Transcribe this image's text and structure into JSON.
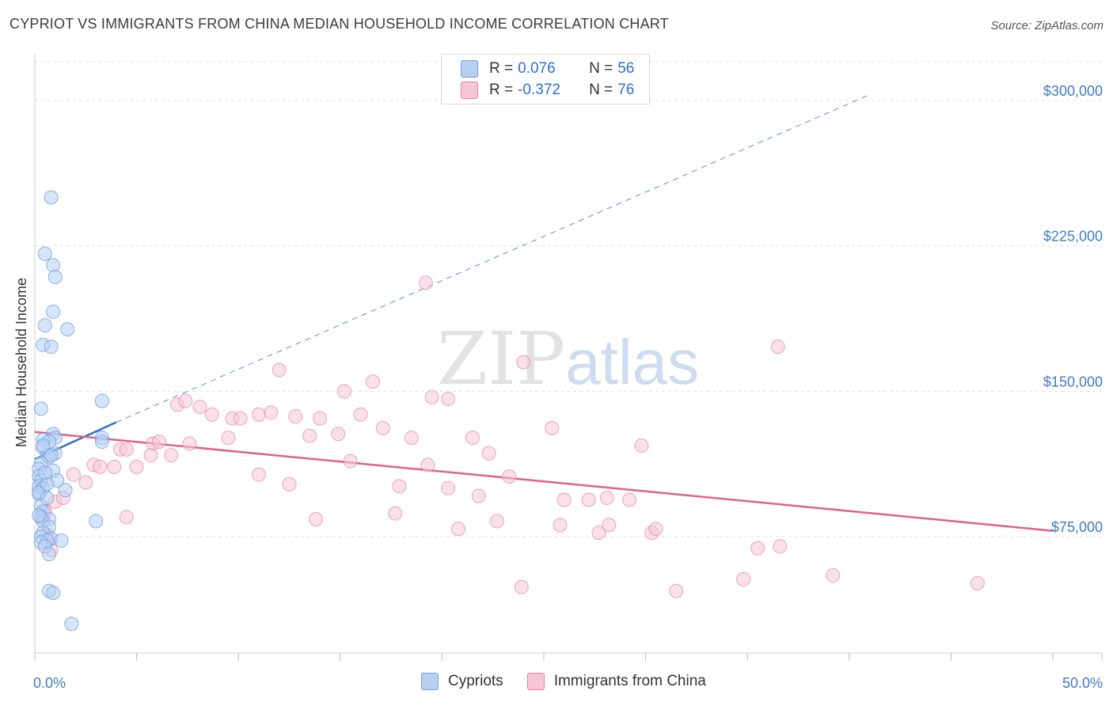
{
  "title": "CYPRIOT VS IMMIGRANTS FROM CHINA MEDIAN HOUSEHOLD INCOME CORRELATION CHART",
  "source": "Source: ZipAtlas.com",
  "watermark": {
    "zip": "ZIP",
    "atlas": "atlas"
  },
  "colors": {
    "cypriot": "#6f9fe0",
    "cypriot_fill": "#b7d0f2",
    "china": "#e87fa5",
    "china_fill": "#f6c6d7",
    "trend_blue": "#2f6fcc",
    "trend_pink": "#e0608e",
    "axis_text": "#3f7cc4",
    "grid": "#e0e0e0"
  },
  "legend": {
    "rows": [
      {
        "r_label": "R =",
        "r_value": "0.076",
        "n_label": "N =",
        "n_value": "56"
      },
      {
        "r_label": "R =",
        "r_value": "-0.372",
        "n_label": "N =",
        "n_value": "76"
      }
    ]
  },
  "bottom_legend": {
    "series1": "Cypriots",
    "series2": "Immigrants from China"
  },
  "chart_data": {
    "type": "scatter",
    "title": "CYPRIOT VS IMMIGRANTS FROM CHINA MEDIAN HOUSEHOLD INCOME CORRELATION CHART",
    "xlabel": "",
    "ylabel": "Median Household Income",
    "xlim": [
      0,
      50
    ],
    "ylim": [
      15000,
      320000
    ],
    "x_tick_labels": [
      "0.0%",
      "50.0%"
    ],
    "y_ticks": [
      75000,
      150000,
      225000,
      300000
    ],
    "y_tick_labels": [
      "$75,000",
      "$150,000",
      "$225,000",
      "$300,000"
    ],
    "grid": true,
    "series": [
      {
        "name": "Cypriots",
        "points": [
          [
            0.8,
            250000
          ],
          [
            0.5,
            221000
          ],
          [
            0.9,
            215000
          ],
          [
            1.0,
            209000
          ],
          [
            0.9,
            191000
          ],
          [
            0.5,
            184000
          ],
          [
            1.6,
            182000
          ],
          [
            0.4,
            174000
          ],
          [
            0.8,
            173000
          ],
          [
            3.3,
            145000
          ],
          [
            0.3,
            141000
          ],
          [
            0.9,
            128000
          ],
          [
            1.0,
            126000
          ],
          [
            3.3,
            126000
          ],
          [
            3.3,
            124000
          ],
          [
            0.4,
            125000
          ],
          [
            0.7,
            124000
          ],
          [
            0.4,
            121000
          ],
          [
            1.0,
            118000
          ],
          [
            0.6,
            117000
          ],
          [
            0.7,
            116000
          ],
          [
            0.3,
            113000
          ],
          [
            0.2,
            110000
          ],
          [
            0.9,
            109000
          ],
          [
            0.2,
            106000
          ],
          [
            0.3,
            104000
          ],
          [
            1.1,
            104000
          ],
          [
            0.2,
            101000
          ],
          [
            0.4,
            100000
          ],
          [
            1.5,
            99000
          ],
          [
            0.2,
            97000
          ],
          [
            0.3,
            91000
          ],
          [
            0.4,
            88000
          ],
          [
            0.3,
            85000
          ],
          [
            0.7,
            84000
          ],
          [
            0.4,
            83000
          ],
          [
            0.7,
            80000
          ],
          [
            0.4,
            77000
          ],
          [
            0.3,
            75000
          ],
          [
            0.8,
            74000
          ],
          [
            0.6,
            73000
          ],
          [
            1.3,
            73000
          ],
          [
            0.3,
            72000
          ],
          [
            0.5,
            70000
          ],
          [
            0.7,
            66000
          ],
          [
            0.7,
            47000
          ],
          [
            0.9,
            46000
          ],
          [
            1.8,
            30000
          ],
          [
            3.0,
            83000
          ],
          [
            0.2,
            98000
          ],
          [
            0.6,
            102000
          ],
          [
            0.8,
            117000
          ],
          [
            0.2,
            86000
          ],
          [
            0.4,
            122000
          ],
          [
            0.5,
            108000
          ],
          [
            0.6,
            95000
          ]
        ]
      },
      {
        "name": "Immigrants from China",
        "points": [
          [
            19.2,
            206000
          ],
          [
            36.5,
            173000
          ],
          [
            12.0,
            161000
          ],
          [
            16.6,
            155000
          ],
          [
            24.0,
            165000
          ],
          [
            15.2,
            150000
          ],
          [
            19.5,
            147000
          ],
          [
            7.0,
            143000
          ],
          [
            8.1,
            142000
          ],
          [
            7.4,
            145000
          ],
          [
            20.3,
            146000
          ],
          [
            8.7,
            138000
          ],
          [
            11.0,
            138000
          ],
          [
            11.6,
            139000
          ],
          [
            9.7,
            136000
          ],
          [
            10.1,
            136000
          ],
          [
            12.8,
            137000
          ],
          [
            14.0,
            136000
          ],
          [
            16.0,
            138000
          ],
          [
            17.1,
            131000
          ],
          [
            25.4,
            131000
          ],
          [
            29.8,
            122000
          ],
          [
            9.5,
            126000
          ],
          [
            13.5,
            127000
          ],
          [
            14.9,
            128000
          ],
          [
            18.5,
            126000
          ],
          [
            21.5,
            126000
          ],
          [
            5.8,
            123000
          ],
          [
            6.1,
            124000
          ],
          [
            7.6,
            123000
          ],
          [
            4.2,
            120000
          ],
          [
            4.5,
            120000
          ],
          [
            5.0,
            111000
          ],
          [
            5.7,
            117000
          ],
          [
            6.7,
            117000
          ],
          [
            2.9,
            112000
          ],
          [
            3.2,
            111000
          ],
          [
            3.9,
            111000
          ],
          [
            1.9,
            107000
          ],
          [
            2.5,
            103000
          ],
          [
            15.5,
            114000
          ],
          [
            19.3,
            112000
          ],
          [
            22.3,
            118000
          ],
          [
            11.0,
            107000
          ],
          [
            12.5,
            102000
          ],
          [
            17.9,
            101000
          ],
          [
            23.3,
            106000
          ],
          [
            20.3,
            100000
          ],
          [
            21.8,
            96000
          ],
          [
            26.0,
            94000
          ],
          [
            27.2,
            94000
          ],
          [
            28.1,
            95000
          ],
          [
            29.2,
            94000
          ],
          [
            4.5,
            85000
          ],
          [
            13.8,
            84000
          ],
          [
            17.7,
            87000
          ],
          [
            20.8,
            79000
          ],
          [
            22.7,
            83000
          ],
          [
            25.8,
            81000
          ],
          [
            27.7,
            77000
          ],
          [
            28.2,
            81000
          ],
          [
            30.3,
            77000
          ],
          [
            30.5,
            79000
          ],
          [
            35.5,
            69000
          ],
          [
            36.6,
            70000
          ],
          [
            23.9,
            49000
          ],
          [
            31.5,
            47000
          ],
          [
            34.8,
            53000
          ],
          [
            39.2,
            55000
          ],
          [
            46.3,
            51000
          ],
          [
            0.4,
            85000
          ],
          [
            0.6,
            76000
          ],
          [
            0.8,
            68000
          ],
          [
            1.0,
            93000
          ],
          [
            1.4,
            95000
          ],
          [
            0.5,
            88000
          ]
        ]
      }
    ],
    "trend_lines": [
      {
        "series": "Cypriots",
        "solid_x": [
          0,
          4.0
        ],
        "y_at_0": 115000,
        "y_at_4": 134000,
        "dashed_to_x": 41,
        "dashed_end_y": 303000
      },
      {
        "series": "Immigrants from China",
        "x": [
          0,
          50
        ],
        "y": [
          129000,
          78000
        ]
      }
    ]
  }
}
